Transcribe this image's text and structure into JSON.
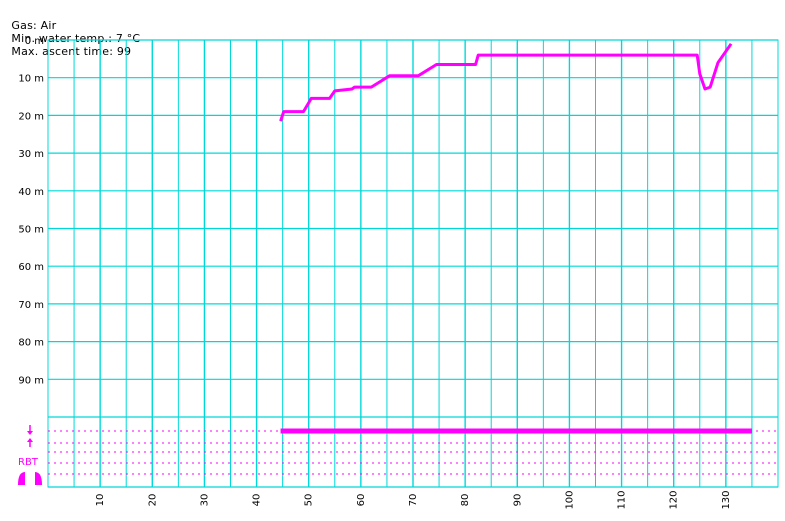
{
  "header": {
    "gas": "Gas: Air",
    "min_temp": "Min. water temp.: 7 °C",
    "max_ascent": "Max. ascent time: 99"
  },
  "colors": {
    "grid": "#00d8d8",
    "profile": "#ff00ff",
    "dotted": "#ff00ff",
    "background": "#ffffff",
    "text": "#000000"
  },
  "icons": {
    "descent_arrow": "arrow-down-icon",
    "ascent_arrow": "arrow-up-icon",
    "rbt_label": "RBT",
    "lungs": "lungs-icon"
  },
  "chart_data": {
    "type": "line",
    "title": "",
    "xlabel": "",
    "ylabel": "",
    "y_unit": "m",
    "y_inverted": true,
    "ylim": [
      0,
      100
    ],
    "xlim": [
      0,
      140
    ],
    "y_tick_labels": [
      "0 m",
      "10 m",
      "20 m",
      "30 m",
      "40 m",
      "50 m",
      "60 m",
      "70 m",
      "80 m",
      "90 m"
    ],
    "y_tick_values": [
      0,
      10,
      20,
      30,
      40,
      50,
      60,
      70,
      80,
      90
    ],
    "x_tick_labels": [
      "10",
      "20",
      "30",
      "40",
      "50",
      "60",
      "70",
      "80",
      "90",
      "100",
      "110",
      "120",
      "130"
    ],
    "x_tick_values": [
      10,
      20,
      30,
      40,
      50,
      60,
      70,
      80,
      90,
      100,
      110,
      120,
      130
    ],
    "grid": true,
    "series": [
      {
        "x": [
          44.6,
          45.2,
          48.5,
          49.0,
          50.5,
          53.4,
          54.0,
          55.0,
          58.3,
          58.8,
          62.0,
          65.5,
          66.0,
          66.5,
          71.0,
          74.5,
          75.0,
          76.5,
          82.0,
          82.5,
          86.0,
          93.0,
          93.5,
          96.0,
          104.0,
          114.0,
          124.0,
          124.5,
          125.0,
          126.0,
          127.0,
          128.5,
          130.0,
          131.0
        ],
        "y": [
          21.5,
          19.0,
          19.0,
          19.0,
          15.5,
          15.5,
          15.5,
          13.5,
          13.0,
          12.5,
          12.5,
          9.5,
          9.5,
          9.5,
          9.5,
          6.5,
          6.5,
          6.5,
          6.5,
          4.0,
          4.0,
          4.0,
          4.0,
          4.0,
          4.0,
          4.0,
          4.0,
          4.0,
          9.0,
          13.0,
          12.5,
          6.0,
          3.0,
          1.0
        ]
      }
    ],
    "rbt_bar": {
      "x_start": 44.6,
      "x_end": 135.0
    }
  }
}
